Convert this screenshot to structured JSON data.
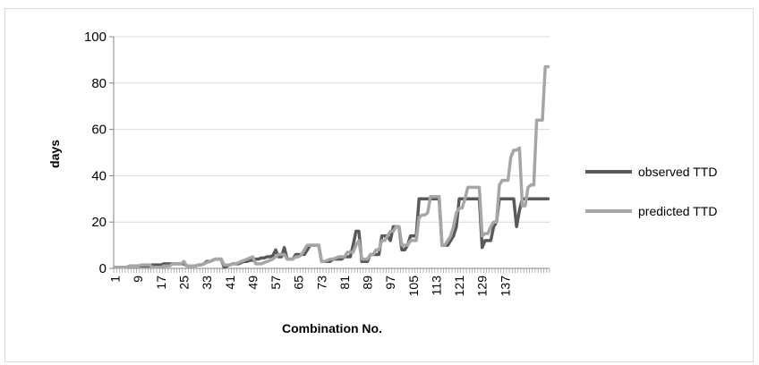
{
  "chart_data": {
    "type": "line",
    "xlabel": "Combination No.",
    "ylabel": "days",
    "ylim": [
      0,
      100
    ],
    "yticks": [
      0,
      20,
      40,
      60,
      80,
      100
    ],
    "xlim": [
      1,
      144
    ],
    "xticks": [
      1,
      9,
      17,
      25,
      33,
      41,
      49,
      57,
      65,
      73,
      81,
      89,
      97,
      105,
      113,
      121,
      129,
      137
    ],
    "grid": "horizontal",
    "legend": "right",
    "series": [
      {
        "name": "observed TTD",
        "color": "#595959",
        "values": [
          0.5,
          0.5,
          0.5,
          0.5,
          0.5,
          1,
          1,
          1,
          1,
          1,
          1,
          1,
          1,
          1.5,
          1.5,
          1.5,
          1.5,
          2,
          2,
          2,
          2,
          2,
          2,
          2,
          2,
          1,
          1,
          1,
          1,
          1.5,
          1.5,
          2,
          3,
          3,
          3.5,
          4,
          4,
          4,
          0.5,
          1,
          1.5,
          2,
          2,
          2,
          2.5,
          3,
          3,
          3.5,
          3.5,
          4,
          4,
          4.5,
          4.5,
          5,
          5,
          5.5,
          8,
          5,
          5,
          9,
          4,
          4,
          4,
          6,
          6,
          6,
          6,
          8,
          10,
          10,
          10,
          10,
          3,
          3,
          3,
          3,
          4,
          4,
          4,
          4,
          5,
          5,
          5,
          10,
          16,
          16,
          3,
          3,
          3,
          6,
          6,
          6,
          6,
          14,
          14,
          14,
          12,
          18,
          18,
          18,
          8,
          8,
          10,
          14,
          14,
          14,
          30,
          30,
          30,
          30,
          30,
          30,
          30,
          30,
          10,
          10,
          10,
          12,
          14,
          18,
          30,
          30,
          30,
          30,
          30,
          30,
          30,
          30,
          9,
          12,
          12,
          12,
          18,
          20,
          30,
          30,
          30,
          30,
          30,
          30,
          18,
          25,
          30,
          30,
          30,
          30,
          30,
          30,
          30,
          30,
          30,
          30
        ]
      },
      {
        "name": "predicted TTD",
        "color": "#a6a6a6",
        "values": [
          0.5,
          0.5,
          0.5,
          0.5,
          0.5,
          1,
          1,
          1,
          1,
          1.5,
          1.5,
          1.5,
          1.5,
          0.5,
          0.5,
          0.5,
          0.5,
          1,
          1,
          1,
          2,
          2,
          2,
          2,
          3,
          1,
          1,
          1,
          1,
          1.5,
          1.5,
          2,
          2.5,
          3,
          3.5,
          4,
          4,
          4,
          1.5,
          1.5,
          1.5,
          2,
          2,
          2.5,
          3,
          3.5,
          4,
          4.5,
          5,
          2,
          2,
          2,
          2.5,
          3,
          3.5,
          4,
          5,
          6,
          6,
          6,
          4,
          4,
          4,
          5,
          5,
          6,
          8,
          10,
          10,
          10,
          10,
          10,
          3,
          3,
          3.5,
          4,
          4,
          4.5,
          5,
          5,
          5,
          7,
          7,
          7,
          10,
          12,
          4,
          4,
          4,
          6,
          6,
          8,
          8,
          12,
          12,
          14,
          16,
          16,
          18,
          18,
          10,
          10,
          10,
          12,
          12,
          12,
          22,
          23,
          23,
          24,
          31,
          31,
          31,
          31,
          10,
          10,
          12,
          14,
          18,
          24,
          26,
          26,
          30,
          35,
          35,
          35,
          35,
          35,
          14,
          15,
          15,
          18,
          20,
          20,
          36,
          38,
          38,
          38,
          48,
          51,
          51,
          52,
          27,
          27,
          35,
          36,
          36,
          64,
          64,
          64,
          87,
          87
        ]
      }
    ]
  }
}
